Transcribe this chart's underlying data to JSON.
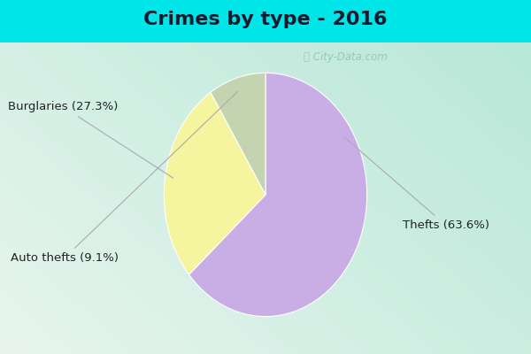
{
  "title": "Crimes by type - 2016",
  "slices": [
    {
      "label": "Thefts (63.6%)",
      "value": 63.6,
      "color": "#c9aee5"
    },
    {
      "label": "Burglaries (27.3%)",
      "value": 27.3,
      "color": "#f5f5a0"
    },
    {
      "label": "Auto thefts (9.1%)",
      "value": 9.1,
      "color": "#c5d4b0"
    }
  ],
  "background_top": "#00e5e8",
  "background_main_tl": "#b8e8d8",
  "background_main_br": "#e8f5ee",
  "title_fontsize": 16,
  "label_fontsize": 9.5,
  "watermark": "ⓘ City-Data.com",
  "startangle": 90
}
